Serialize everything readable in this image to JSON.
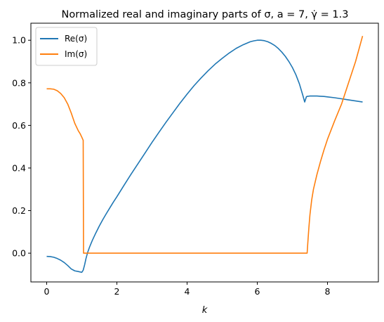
{
  "chart_data": {
    "type": "line",
    "title": "Normalized real and imaginary parts of σ, a = 7, γ̇ = 1.3",
    "xlabel": "k",
    "ylabel": "",
    "xlim": [
      -0.45,
      9.45
    ],
    "ylim": [
      -0.135,
      1.08
    ],
    "xticks": [
      0,
      2,
      4,
      6,
      8
    ],
    "xtick_labels": [
      "0",
      "2",
      "4",
      "6",
      "8"
    ],
    "yticks": [
      0.0,
      0.2,
      0.4,
      0.6,
      0.8,
      1.0
    ],
    "ytick_labels": [
      "0.0",
      "0.2",
      "0.4",
      "0.6",
      "0.8",
      "1.0"
    ],
    "grid": false,
    "legend_position": "upper-left",
    "series": [
      {
        "name": "Re(σ)",
        "color": "#1f77b4",
        "x": [
          0.0,
          0.1,
          0.2,
          0.3,
          0.4,
          0.5,
          0.6,
          0.7,
          0.8,
          0.9,
          1.0,
          1.04,
          1.08,
          1.12,
          1.17,
          1.22,
          1.3,
          1.4,
          1.5,
          1.6,
          1.7,
          1.8,
          1.9,
          2.0,
          2.2,
          2.4,
          2.6,
          2.8,
          3.0,
          3.2,
          3.4,
          3.6,
          3.8,
          4.0,
          4.2,
          4.4,
          4.6,
          4.8,
          5.0,
          5.2,
          5.4,
          5.6,
          5.8,
          5.9,
          6.0,
          6.1,
          6.2,
          6.3,
          6.4,
          6.5,
          6.6,
          6.7,
          6.8,
          6.9,
          7.0,
          7.1,
          7.2,
          7.3,
          7.35,
          7.4,
          7.42,
          7.44,
          7.46,
          7.5,
          7.6,
          7.7,
          7.8,
          7.9,
          8.0,
          8.2,
          8.4,
          8.6,
          8.8,
          9.0
        ],
        "y": [
          -0.015,
          -0.016,
          -0.019,
          -0.025,
          -0.033,
          -0.044,
          -0.058,
          -0.074,
          -0.083,
          -0.086,
          -0.09,
          -0.08,
          -0.055,
          -0.025,
          0.005,
          0.028,
          0.06,
          0.095,
          0.128,
          0.158,
          0.186,
          0.213,
          0.24,
          0.265,
          0.318,
          0.37,
          0.42,
          0.47,
          0.52,
          0.568,
          0.615,
          0.66,
          0.705,
          0.747,
          0.787,
          0.823,
          0.857,
          0.888,
          0.915,
          0.94,
          0.962,
          0.979,
          0.993,
          0.997,
          1.0,
          1.0,
          0.998,
          0.993,
          0.985,
          0.975,
          0.961,
          0.944,
          0.924,
          0.9,
          0.872,
          0.838,
          0.795,
          0.74,
          0.71,
          0.735,
          0.736,
          0.737,
          0.737,
          0.738,
          0.738,
          0.738,
          0.737,
          0.736,
          0.734,
          0.73,
          0.725,
          0.72,
          0.715,
          0.71
        ]
      },
      {
        "name": "Im(σ)",
        "color": "#ff7f0e",
        "x": [
          0.0,
          0.1,
          0.2,
          0.3,
          0.4,
          0.5,
          0.6,
          0.7,
          0.8,
          0.9,
          0.95,
          1.0,
          1.04,
          1.05,
          1.1,
          2.0,
          3.0,
          4.0,
          5.0,
          6.0,
          7.0,
          7.42,
          7.44,
          7.47,
          7.5,
          7.55,
          7.6,
          7.7,
          7.8,
          7.9,
          8.0,
          8.2,
          8.4,
          8.6,
          8.8,
          9.0
        ],
        "y": [
          0.772,
          0.772,
          0.77,
          0.763,
          0.75,
          0.73,
          0.7,
          0.658,
          0.61,
          0.575,
          0.562,
          0.545,
          0.53,
          0.0,
          0.0,
          0.0,
          0.0,
          0.0,
          0.0,
          0.0,
          0.0,
          0.0,
          0.05,
          0.12,
          0.18,
          0.25,
          0.3,
          0.37,
          0.43,
          0.485,
          0.535,
          0.62,
          0.7,
          0.8,
          0.9,
          1.02
        ]
      }
    ]
  }
}
